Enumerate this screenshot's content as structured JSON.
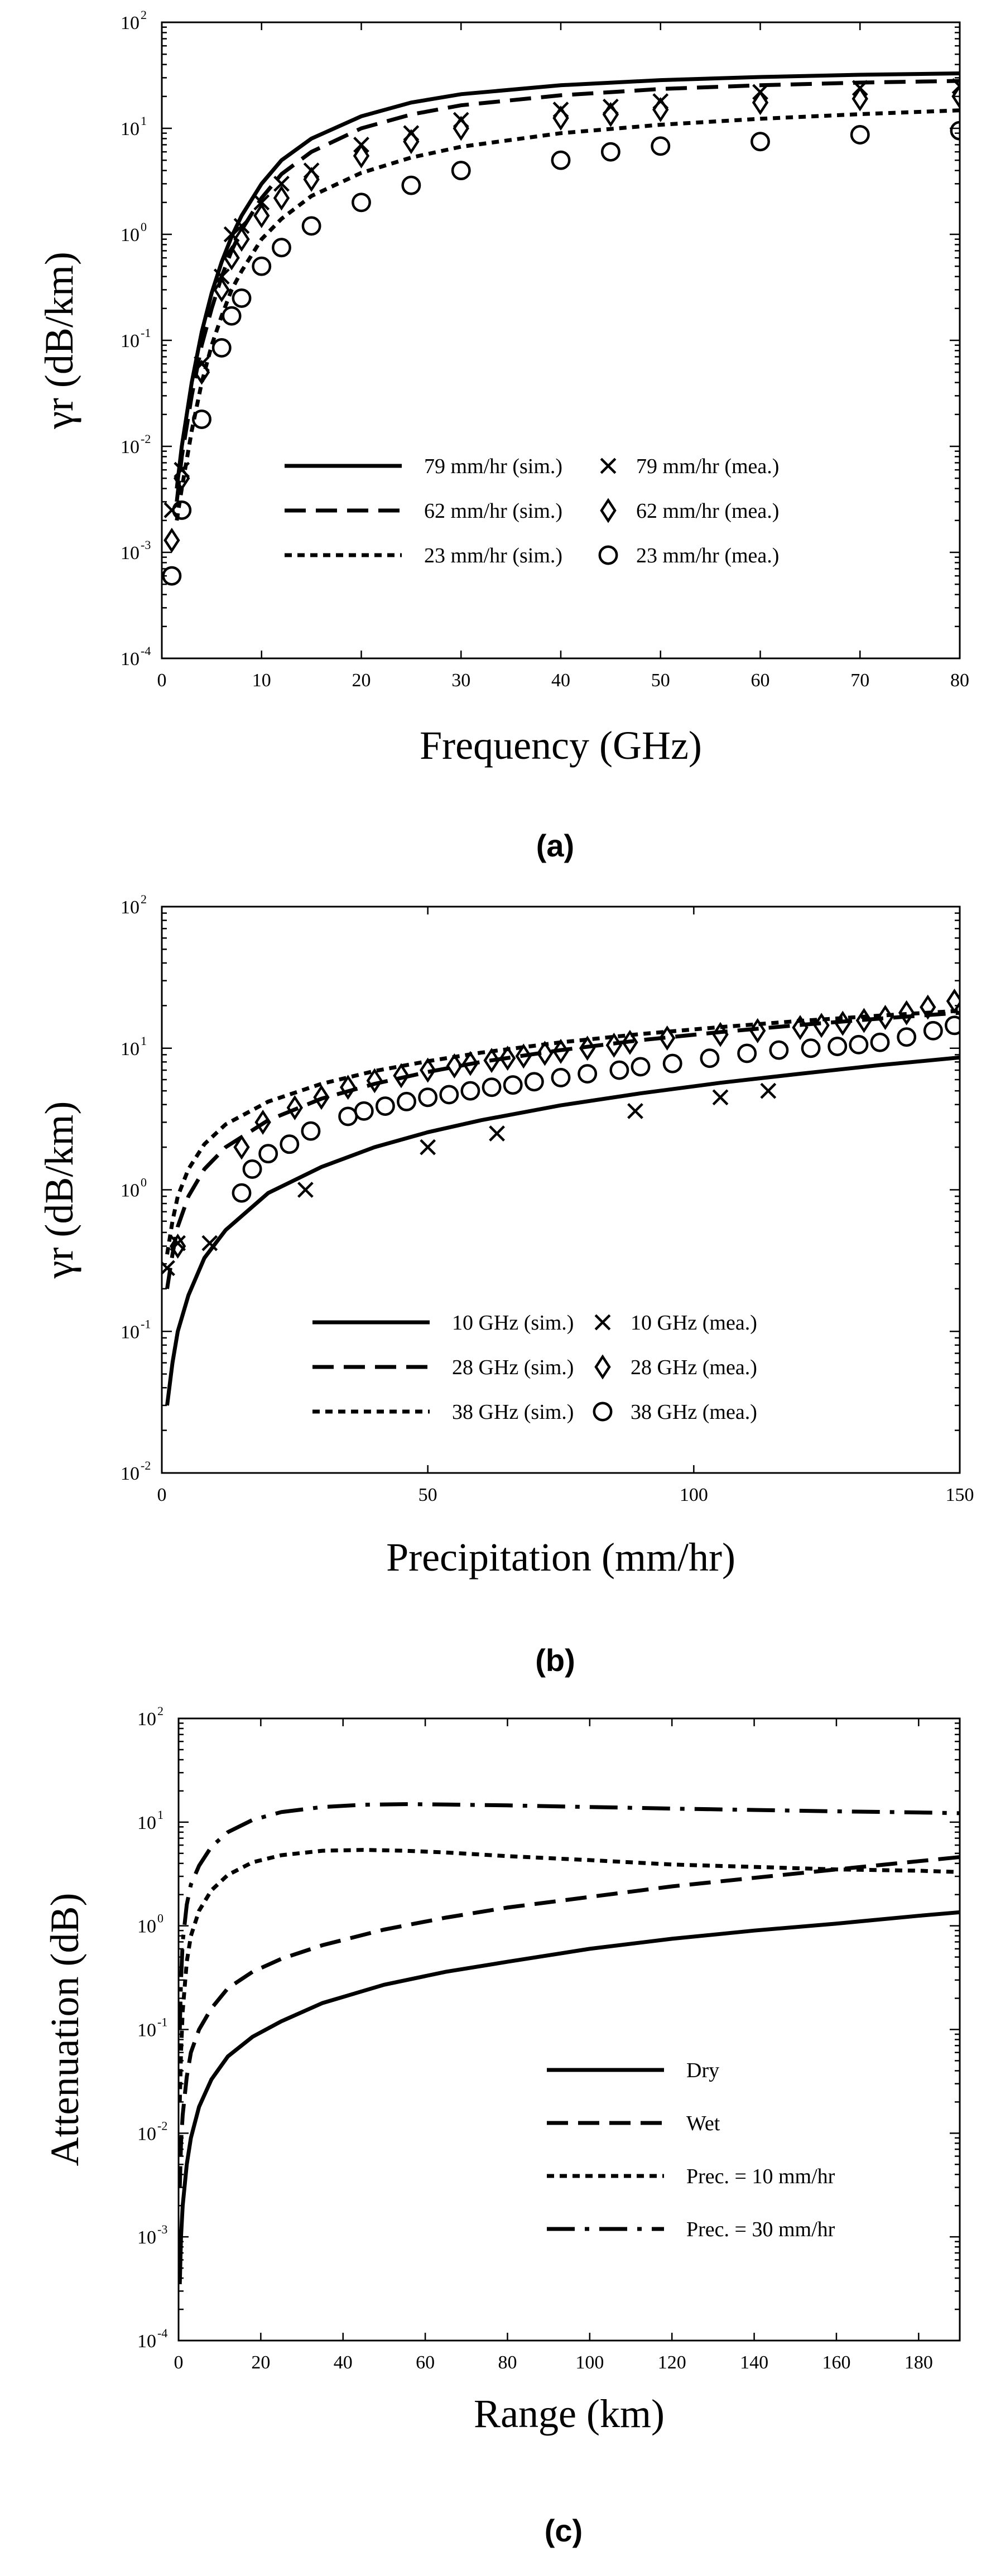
{
  "chart_data": [
    {
      "type": "line",
      "caption": "(a)",
      "xlabel": "Frequency (GHz)",
      "ylabel": "γr (dB/km)",
      "xlim": [
        0,
        80
      ],
      "ylim": [
        0.0001,
        100
      ],
      "yscale": "log",
      "legend_position": "center-right",
      "x_ticks": [
        0,
        10,
        20,
        30,
        40,
        50,
        60,
        70,
        80
      ],
      "y_ticks": [
        -4,
        -3,
        -2,
        -1,
        0,
        1,
        2
      ],
      "series": [
        {
          "name": "79 mm/hr (sim.)",
          "kind": "line",
          "style": "solid",
          "x": [
            1.5,
            2,
            3,
            4,
            5,
            6,
            7,
            8,
            10,
            12,
            15,
            20,
            25,
            30,
            40,
            50,
            60,
            70,
            80
          ],
          "y": [
            0.004,
            0.01,
            0.04,
            0.12,
            0.28,
            0.55,
            0.95,
            1.5,
            3.0,
            5.0,
            8.0,
            13.0,
            17.5,
            21.0,
            25.5,
            28.5,
            30.5,
            32.0,
            33.0
          ]
        },
        {
          "name": "62 mm/hr (sim.)",
          "kind": "line",
          "style": "dashed",
          "x": [
            1.5,
            2,
            3,
            4,
            5,
            6,
            7,
            8,
            10,
            12,
            15,
            20,
            25,
            30,
            40,
            50,
            60,
            70,
            80
          ],
          "y": [
            0.003,
            0.008,
            0.03,
            0.09,
            0.2,
            0.4,
            0.7,
            1.1,
            2.2,
            3.7,
            6.0,
            10.0,
            13.5,
            16.5,
            20.5,
            23.5,
            25.5,
            27.0,
            28.0
          ]
        },
        {
          "name": "23 mm/hr (sim.)",
          "kind": "line",
          "style": "dotted",
          "x": [
            1.5,
            2,
            3,
            4,
            5,
            6,
            7,
            8,
            10,
            12,
            15,
            20,
            25,
            30,
            40,
            50,
            60,
            70,
            80
          ],
          "y": [
            0.002,
            0.004,
            0.014,
            0.04,
            0.09,
            0.17,
            0.3,
            0.45,
            0.9,
            1.4,
            2.3,
            3.8,
            5.3,
            6.7,
            9.0,
            10.8,
            12.3,
            13.6,
            14.8
          ]
        },
        {
          "name": "79 mm/hr (mea.)",
          "kind": "marker",
          "marker": "x",
          "x": [
            1,
            2,
            4,
            6,
            7,
            8,
            10,
            12,
            15,
            20,
            25,
            30,
            40,
            45,
            50,
            60,
            70,
            80
          ],
          "y": [
            0.0025,
            0.006,
            0.06,
            0.4,
            1.0,
            1.2,
            2.0,
            3.0,
            4.0,
            7.0,
            9.0,
            12.0,
            15.0,
            16.0,
            18.0,
            22.0,
            24.0,
            25.0
          ]
        },
        {
          "name": "62 mm/hr (mea.)",
          "kind": "marker",
          "marker": "diamond",
          "x": [
            1,
            2,
            4,
            6,
            7,
            8,
            10,
            12,
            15,
            20,
            25,
            30,
            40,
            45,
            50,
            60,
            70,
            80
          ],
          "y": [
            0.0013,
            0.005,
            0.05,
            0.3,
            0.6,
            0.9,
            1.5,
            2.2,
            3.3,
            5.5,
            7.5,
            10.0,
            12.5,
            13.5,
            15.0,
            17.5,
            19.0,
            20.0
          ]
        },
        {
          "name": "23 mm/hr (mea.)",
          "kind": "marker",
          "marker": "circle",
          "x": [
            1,
            2,
            4,
            6,
            7,
            8,
            10,
            12,
            15,
            20,
            25,
            30,
            40,
            45,
            50,
            60,
            70,
            80
          ],
          "y": [
            0.0006,
            0.0025,
            0.018,
            0.085,
            0.17,
            0.25,
            0.5,
            0.75,
            1.2,
            2.0,
            2.9,
            4.0,
            5.0,
            6.0,
            6.8,
            7.5,
            8.7,
            9.5
          ]
        }
      ]
    },
    {
      "type": "line",
      "caption": "(b)",
      "xlabel": "Precipitation (mm/hr)",
      "ylabel": "γr (dB/km)",
      "xlim": [
        0,
        150
      ],
      "ylim": [
        0.01,
        100
      ],
      "yscale": "log",
      "legend_position": "bottom-right",
      "x_ticks": [
        0,
        50,
        100,
        150
      ],
      "y_ticks": [
        -2,
        -1,
        0,
        1,
        2
      ],
      "series": [
        {
          "name": "10 GHz (sim.)",
          "kind": "line",
          "style": "solid",
          "x": [
            1,
            2,
            3,
            5,
            8,
            12,
            20,
            30,
            40,
            50,
            60,
            75,
            90,
            105,
            120,
            135,
            150
          ],
          "y": [
            0.03,
            0.06,
            0.1,
            0.18,
            0.33,
            0.52,
            0.95,
            1.45,
            2.0,
            2.55,
            3.1,
            3.95,
            4.8,
            5.7,
            6.6,
            7.6,
            8.6
          ]
        },
        {
          "name": "28 GHz (sim.)",
          "kind": "line",
          "style": "dashed",
          "x": [
            1,
            2,
            3,
            5,
            8,
            12,
            20,
            30,
            40,
            50,
            60,
            75,
            90,
            105,
            120,
            135,
            150
          ],
          "y": [
            0.2,
            0.35,
            0.55,
            0.9,
            1.4,
            2.0,
            3.1,
            4.4,
            5.6,
            6.8,
            8.0,
            9.7,
            11.4,
            13.0,
            14.6,
            16.2,
            17.8
          ]
        },
        {
          "name": "38 GHz (sim.)",
          "kind": "line",
          "style": "dotted",
          "x": [
            1,
            2,
            3,
            5,
            8,
            12,
            20,
            30,
            40,
            50,
            60,
            75,
            90,
            105,
            120,
            135,
            150
          ],
          "y": [
            0.35,
            0.6,
            0.9,
            1.4,
            2.1,
            2.9,
            4.2,
            5.6,
            6.9,
            8.1,
            9.3,
            11.0,
            12.6,
            14.1,
            15.6,
            17.0,
            18.4
          ]
        },
        {
          "name": "10 GHz (mea.)",
          "kind": "marker",
          "marker": "x",
          "x": [
            1,
            3,
            9,
            27,
            50,
            63,
            89,
            105,
            114
          ],
          "y": [
            0.28,
            0.42,
            0.42,
            1.0,
            2.0,
            2.5,
            3.6,
            4.5,
            5.0
          ]
        },
        {
          "name": "28 GHz (mea.)",
          "kind": "marker",
          "marker": "diamond",
          "x": [
            3,
            15,
            19,
            25,
            30,
            35,
            40,
            45,
            50,
            55,
            58,
            62,
            65,
            68,
            72,
            75,
            80,
            85,
            88,
            95,
            105,
            112,
            120,
            124,
            128,
            132,
            136,
            140,
            144,
            149
          ],
          "y": [
            0.4,
            2.0,
            3.0,
            3.8,
            4.5,
            5.3,
            5.9,
            6.4,
            7.0,
            7.5,
            7.8,
            8.2,
            8.5,
            8.8,
            9.2,
            9.5,
            10.0,
            10.5,
            11.0,
            11.8,
            12.5,
            13.3,
            14.0,
            14.5,
            15.0,
            15.7,
            16.5,
            17.8,
            19.5,
            21.5
          ]
        },
        {
          "name": "38 GHz (mea.)",
          "kind": "marker",
          "marker": "circle",
          "x": [
            15,
            17,
            20,
            24,
            28,
            35,
            38,
            42,
            46,
            50,
            54,
            58,
            62,
            66,
            70,
            75,
            80,
            86,
            90,
            96,
            103,
            110,
            116,
            122,
            127,
            131,
            135,
            140,
            145,
            149
          ],
          "y": [
            0.95,
            1.4,
            1.8,
            2.1,
            2.6,
            3.3,
            3.6,
            3.9,
            4.2,
            4.5,
            4.7,
            5.0,
            5.3,
            5.5,
            5.8,
            6.2,
            6.6,
            7.0,
            7.4,
            7.8,
            8.5,
            9.2,
            9.7,
            10.0,
            10.3,
            10.6,
            11.0,
            12.0,
            13.3,
            14.5
          ]
        }
      ]
    },
    {
      "type": "line",
      "caption": "(c)",
      "xlabel": "Range (km)",
      "ylabel": "Attenuation (dB)",
      "xlim": [
        0,
        190
      ],
      "ylim": [
        0.0001,
        100
      ],
      "yscale": "log",
      "legend_position": "bottom-right",
      "x_ticks": [
        0,
        20,
        40,
        60,
        80,
        100,
        120,
        140,
        160,
        180
      ],
      "y_ticks": [
        -4,
        -3,
        -2,
        -1,
        0,
        1,
        2
      ],
      "series": [
        {
          "name": "Dry",
          "kind": "line",
          "style": "solid",
          "x": [
            0.3,
            0.6,
            1,
            2,
            3,
            5,
            8,
            12,
            18,
            25,
            35,
            50,
            65,
            80,
            100,
            120,
            140,
            160,
            180,
            190
          ],
          "y": [
            0.00035,
            0.001,
            0.002,
            0.005,
            0.009,
            0.018,
            0.033,
            0.055,
            0.085,
            0.12,
            0.18,
            0.27,
            0.36,
            0.45,
            0.6,
            0.75,
            0.9,
            1.05,
            1.25,
            1.35
          ]
        },
        {
          "name": "Wet",
          "kind": "line",
          "style": "dashed",
          "x": [
            0.3,
            0.6,
            1,
            2,
            3,
            5,
            8,
            12,
            18,
            25,
            35,
            50,
            65,
            80,
            100,
            120,
            140,
            160,
            180,
            190
          ],
          "y": [
            0.003,
            0.008,
            0.015,
            0.035,
            0.06,
            0.1,
            0.16,
            0.25,
            0.36,
            0.48,
            0.65,
            0.92,
            1.2,
            1.5,
            1.9,
            2.4,
            2.9,
            3.5,
            4.2,
            4.6
          ]
        },
        {
          "name": "Prec. = 10 mm/hr",
          "kind": "line",
          "style": "dotted",
          "x": [
            0.3,
            0.6,
            1,
            2,
            3,
            5,
            8,
            12,
            18,
            25,
            35,
            45,
            55,
            65,
            80,
            100,
            120,
            140,
            160,
            180,
            190
          ],
          "y": [
            0.02,
            0.06,
            0.15,
            0.45,
            0.8,
            1.4,
            2.2,
            3.1,
            4.1,
            4.8,
            5.3,
            5.4,
            5.3,
            5.1,
            4.7,
            4.3,
            3.9,
            3.7,
            3.5,
            3.4,
            3.3
          ]
        },
        {
          "name": "Prec. = 30 mm/hr",
          "kind": "line",
          "style": "dashdot",
          "x": [
            0.3,
            0.6,
            1,
            2,
            3,
            5,
            8,
            12,
            18,
            25,
            35,
            45,
            55,
            65,
            80,
            100,
            120,
            140,
            160,
            180,
            190
          ],
          "y": [
            0.1,
            0.3,
            0.7,
            1.6,
            2.5,
            3.8,
            5.8,
            8.0,
            10.5,
            12.5,
            14.0,
            14.7,
            14.9,
            14.8,
            14.5,
            14.0,
            13.5,
            13.1,
            12.7,
            12.4,
            12.2
          ]
        }
      ]
    }
  ]
}
